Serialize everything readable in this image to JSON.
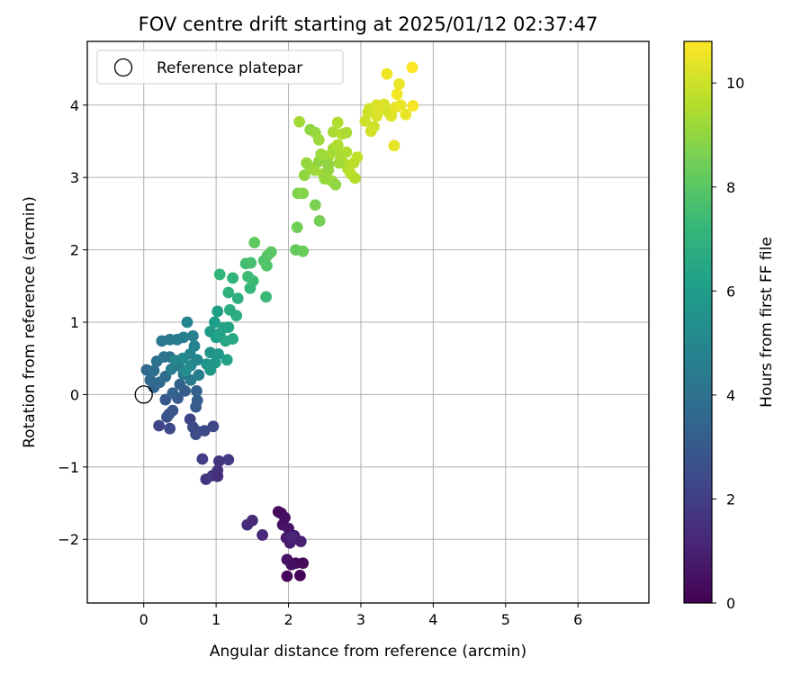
{
  "chart_data": {
    "type": "scatter",
    "title": "FOV centre drift starting at 2025/01/12 02:37:47",
    "xlabel": "Angular distance from reference (arcmin)",
    "ylabel": "Rotation from reference (arcmin)",
    "xlim": [
      -0.78,
      6.98
    ],
    "ylim": [
      -2.88,
      4.88
    ],
    "xticks": [
      0,
      1,
      2,
      3,
      4,
      5,
      6
    ],
    "yticks": [
      -2,
      -1,
      0,
      1,
      2,
      3,
      4
    ],
    "xtick_labels": [
      "0",
      "1",
      "2",
      "3",
      "4",
      "5",
      "6"
    ],
    "ytick_labels": [
      "−2",
      "−1",
      "0",
      "1",
      "2",
      "3",
      "4"
    ],
    "grid": true,
    "legend": {
      "position": "top-left",
      "entries": [
        "Reference platepar"
      ]
    },
    "colorbar": {
      "label": "Hours from first FF file",
      "range": [
        0,
        10.8
      ],
      "ticks": [
        0,
        2,
        4,
        6,
        8,
        10
      ],
      "tick_labels": [
        "0",
        "2",
        "4",
        "6",
        "8",
        "10"
      ],
      "colormap": "viridis"
    },
    "reference_point": {
      "x": 0,
      "y": 0
    },
    "points": [
      {
        "x": 1.86,
        "y": -1.62,
        "h": 0.2
      },
      {
        "x": 1.9,
        "y": -1.64,
        "h": 0.3
      },
      {
        "x": 1.95,
        "y": -1.7,
        "h": 0.4
      },
      {
        "x": 1.92,
        "y": -1.8,
        "h": 0.5
      },
      {
        "x": 2.0,
        "y": -1.85,
        "h": 0.6
      },
      {
        "x": 2.08,
        "y": -1.95,
        "h": 0.7
      },
      {
        "x": 1.97,
        "y": -1.98,
        "h": 0.8
      },
      {
        "x": 2.02,
        "y": -2.05,
        "h": 0.9
      },
      {
        "x": 2.17,
        "y": -2.03,
        "h": 1.0
      },
      {
        "x": 1.98,
        "y": -2.28,
        "h": 0.6
      },
      {
        "x": 2.04,
        "y": -2.35,
        "h": 0.5
      },
      {
        "x": 2.1,
        "y": -2.33,
        "h": 0.4
      },
      {
        "x": 2.2,
        "y": -2.33,
        "h": 0.3
      },
      {
        "x": 1.98,
        "y": -2.51,
        "h": 0.2
      },
      {
        "x": 2.16,
        "y": -2.5,
        "h": 0.1
      },
      {
        "x": 2.05,
        "y": -1.97,
        "h": 1.1
      },
      {
        "x": 1.43,
        "y": -1.8,
        "h": 1.4
      },
      {
        "x": 1.5,
        "y": -1.74,
        "h": 1.3
      },
      {
        "x": 1.64,
        "y": -1.94,
        "h": 1.2
      },
      {
        "x": 0.86,
        "y": -1.17,
        "h": 1.7
      },
      {
        "x": 0.95,
        "y": -1.12,
        "h": 1.8
      },
      {
        "x": 1.02,
        "y": -1.05,
        "h": 1.6
      },
      {
        "x": 1.02,
        "y": -1.13,
        "h": 1.5
      },
      {
        "x": 1.04,
        "y": -0.92,
        "h": 1.7
      },
      {
        "x": 1.17,
        "y": -0.9,
        "h": 1.9
      },
      {
        "x": 0.81,
        "y": -0.89,
        "h": 2.0
      },
      {
        "x": 0.21,
        "y": -0.43,
        "h": 2.3
      },
      {
        "x": 0.36,
        "y": -0.47,
        "h": 2.4
      },
      {
        "x": 0.64,
        "y": -0.34,
        "h": 2.2
      },
      {
        "x": 0.68,
        "y": -0.45,
        "h": 2.5
      },
      {
        "x": 0.74,
        "y": -0.51,
        "h": 2.6
      },
      {
        "x": 0.72,
        "y": -0.55,
        "h": 2.5
      },
      {
        "x": 0.84,
        "y": -0.5,
        "h": 2.4
      },
      {
        "x": 0.96,
        "y": -0.44,
        "h": 2.3
      },
      {
        "x": 0.32,
        "y": -0.31,
        "h": 2.7
      },
      {
        "x": 0.4,
        "y": -0.22,
        "h": 2.8
      },
      {
        "x": 0.35,
        "y": -0.27,
        "h": 2.9
      },
      {
        "x": 0.3,
        "y": -0.07,
        "h": 3.0
      },
      {
        "x": 0.47,
        "y": -0.05,
        "h": 3.1
      },
      {
        "x": 0.57,
        "y": 0.05,
        "h": 3.2
      },
      {
        "x": 0.5,
        "y": 0.14,
        "h": 3.3
      },
      {
        "x": 0.72,
        "y": -0.17,
        "h": 3.1
      },
      {
        "x": 0.74,
        "y": -0.08,
        "h": 3.2
      },
      {
        "x": 0.73,
        "y": 0.05,
        "h": 3.3
      },
      {
        "x": 0.4,
        "y": 0.02,
        "h": 3.4
      },
      {
        "x": 0.14,
        "y": 0.1,
        "h": 3.5
      },
      {
        "x": 0.09,
        "y": 0.2,
        "h": 3.6
      },
      {
        "x": 0.22,
        "y": 0.17,
        "h": 3.7
      },
      {
        "x": 0.3,
        "y": 0.25,
        "h": 3.8
      },
      {
        "x": 0.04,
        "y": 0.34,
        "h": 3.6
      },
      {
        "x": 0.14,
        "y": 0.33,
        "h": 3.9
      },
      {
        "x": 0.18,
        "y": 0.46,
        "h": 4.0
      },
      {
        "x": 0.28,
        "y": 0.52,
        "h": 4.1
      },
      {
        "x": 0.36,
        "y": 0.52,
        "h": 4.2
      },
      {
        "x": 0.48,
        "y": 0.4,
        "h": 4.3
      },
      {
        "x": 0.55,
        "y": 0.28,
        "h": 4.4
      },
      {
        "x": 0.65,
        "y": 0.2,
        "h": 4.5
      },
      {
        "x": 0.76,
        "y": 0.27,
        "h": 4.6
      },
      {
        "x": 0.25,
        "y": 0.74,
        "h": 4.3
      },
      {
        "x": 0.36,
        "y": 0.76,
        "h": 4.4
      },
      {
        "x": 0.46,
        "y": 0.76,
        "h": 4.5
      },
      {
        "x": 0.55,
        "y": 0.79,
        "h": 4.6
      },
      {
        "x": 0.68,
        "y": 0.81,
        "h": 4.7
      },
      {
        "x": 0.6,
        "y": 1.0,
        "h": 4.9
      },
      {
        "x": 0.7,
        "y": 0.67,
        "h": 4.8
      },
      {
        "x": 0.64,
        "y": 0.56,
        "h": 4.9
      },
      {
        "x": 0.74,
        "y": 0.48,
        "h": 5.0
      },
      {
        "x": 0.65,
        "y": 0.4,
        "h": 5.1
      },
      {
        "x": 0.54,
        "y": 0.5,
        "h": 5.2
      },
      {
        "x": 0.44,
        "y": 0.47,
        "h": 5.0
      },
      {
        "x": 0.38,
        "y": 0.35,
        "h": 4.6
      },
      {
        "x": 0.58,
        "y": 0.33,
        "h": 5.3
      },
      {
        "x": 0.92,
        "y": 0.58,
        "h": 5.5
      },
      {
        "x": 0.87,
        "y": 0.42,
        "h": 5.6
      },
      {
        "x": 0.92,
        "y": 0.34,
        "h": 5.7
      },
      {
        "x": 0.99,
        "y": 0.44,
        "h": 5.8
      },
      {
        "x": 0.92,
        "y": 0.87,
        "h": 5.9
      },
      {
        "x": 0.98,
        "y": 1.0,
        "h": 6.0
      },
      {
        "x": 1.02,
        "y": 1.15,
        "h": 6.1
      },
      {
        "x": 1.0,
        "y": 0.79,
        "h": 6.0
      },
      {
        "x": 1.05,
        "y": 0.84,
        "h": 6.2
      },
      {
        "x": 1.1,
        "y": 0.92,
        "h": 6.3
      },
      {
        "x": 1.17,
        "y": 0.93,
        "h": 6.2
      },
      {
        "x": 1.13,
        "y": 0.74,
        "h": 6.4
      },
      {
        "x": 1.15,
        "y": 0.48,
        "h": 6.1
      },
      {
        "x": 1.03,
        "y": 0.56,
        "h": 5.7
      },
      {
        "x": 1.23,
        "y": 0.77,
        "h": 6.5
      },
      {
        "x": 1.19,
        "y": 1.17,
        "h": 6.6
      },
      {
        "x": 1.28,
        "y": 1.09,
        "h": 6.7
      },
      {
        "x": 1.3,
        "y": 1.33,
        "h": 6.8
      },
      {
        "x": 1.17,
        "y": 1.41,
        "h": 6.9
      },
      {
        "x": 1.23,
        "y": 1.61,
        "h": 7.0
      },
      {
        "x": 1.05,
        "y": 1.66,
        "h": 7.1
      },
      {
        "x": 1.47,
        "y": 1.47,
        "h": 7.2
      },
      {
        "x": 1.51,
        "y": 1.57,
        "h": 7.3
      },
      {
        "x": 1.44,
        "y": 1.63,
        "h": 7.4
      },
      {
        "x": 1.41,
        "y": 1.81,
        "h": 7.5
      },
      {
        "x": 1.48,
        "y": 1.82,
        "h": 7.6
      },
      {
        "x": 1.69,
        "y": 1.35,
        "h": 7.3
      },
      {
        "x": 1.66,
        "y": 1.85,
        "h": 7.7
      },
      {
        "x": 1.7,
        "y": 1.78,
        "h": 7.8
      },
      {
        "x": 1.71,
        "y": 1.92,
        "h": 7.9
      },
      {
        "x": 1.76,
        "y": 1.97,
        "h": 8.0
      },
      {
        "x": 1.53,
        "y": 2.1,
        "h": 8.1
      },
      {
        "x": 2.1,
        "y": 2.0,
        "h": 8.2
      },
      {
        "x": 2.2,
        "y": 1.98,
        "h": 8.3
      },
      {
        "x": 2.12,
        "y": 2.31,
        "h": 8.4
      },
      {
        "x": 2.43,
        "y": 2.4,
        "h": 8.5
      },
      {
        "x": 2.37,
        "y": 2.62,
        "h": 8.6
      },
      {
        "x": 2.13,
        "y": 2.78,
        "h": 8.7
      },
      {
        "x": 2.2,
        "y": 2.78,
        "h": 8.8
      },
      {
        "x": 2.22,
        "y": 3.03,
        "h": 9.0
      },
      {
        "x": 2.3,
        "y": 3.14,
        "h": 9.1
      },
      {
        "x": 2.36,
        "y": 3.1,
        "h": 9.2
      },
      {
        "x": 2.42,
        "y": 3.22,
        "h": 9.0
      },
      {
        "x": 2.48,
        "y": 3.05,
        "h": 9.3
      },
      {
        "x": 2.55,
        "y": 3.1,
        "h": 9.1
      },
      {
        "x": 2.6,
        "y": 2.95,
        "h": 9.2
      },
      {
        "x": 2.65,
        "y": 2.9,
        "h": 9.0
      },
      {
        "x": 2.56,
        "y": 3.3,
        "h": 9.4
      },
      {
        "x": 2.62,
        "y": 3.4,
        "h": 9.3
      },
      {
        "x": 2.68,
        "y": 3.45,
        "h": 9.5
      },
      {
        "x": 2.72,
        "y": 3.3,
        "h": 9.4
      },
      {
        "x": 2.76,
        "y": 3.2,
        "h": 9.6
      },
      {
        "x": 2.82,
        "y": 3.12,
        "h": 9.5
      },
      {
        "x": 2.86,
        "y": 3.05,
        "h": 9.7
      },
      {
        "x": 2.92,
        "y": 2.99,
        "h": 9.6
      },
      {
        "x": 2.95,
        "y": 3.28,
        "h": 9.8
      },
      {
        "x": 2.9,
        "y": 3.2,
        "h": 9.7
      },
      {
        "x": 2.8,
        "y": 3.35,
        "h": 9.5
      },
      {
        "x": 2.7,
        "y": 3.2,
        "h": 9.3
      },
      {
        "x": 2.25,
        "y": 3.2,
        "h": 9.1
      },
      {
        "x": 2.3,
        "y": 3.66,
        "h": 9.0
      },
      {
        "x": 2.37,
        "y": 3.62,
        "h": 9.1
      },
      {
        "x": 2.42,
        "y": 3.52,
        "h": 9.2
      },
      {
        "x": 2.15,
        "y": 3.77,
        "h": 9.3
      },
      {
        "x": 2.62,
        "y": 3.63,
        "h": 9.4
      },
      {
        "x": 2.68,
        "y": 3.76,
        "h": 9.5
      },
      {
        "x": 2.74,
        "y": 3.6,
        "h": 9.6
      },
      {
        "x": 2.8,
        "y": 3.62,
        "h": 9.4
      },
      {
        "x": 2.45,
        "y": 3.32,
        "h": 9.2
      },
      {
        "x": 2.55,
        "y": 3.18,
        "h": 9.0
      },
      {
        "x": 2.5,
        "y": 2.98,
        "h": 9.1
      },
      {
        "x": 3.06,
        "y": 3.78,
        "h": 10.0
      },
      {
        "x": 3.12,
        "y": 3.95,
        "h": 10.1
      },
      {
        "x": 3.18,
        "y": 3.7,
        "h": 10.0
      },
      {
        "x": 3.22,
        "y": 4.0,
        "h": 10.2
      },
      {
        "x": 3.28,
        "y": 3.95,
        "h": 10.3
      },
      {
        "x": 3.32,
        "y": 4.01,
        "h": 10.2
      },
      {
        "x": 3.38,
        "y": 3.9,
        "h": 10.1
      },
      {
        "x": 3.42,
        "y": 3.85,
        "h": 10.3
      },
      {
        "x": 3.48,
        "y": 3.97,
        "h": 10.4
      },
      {
        "x": 3.55,
        "y": 4.0,
        "h": 10.5
      },
      {
        "x": 3.5,
        "y": 4.15,
        "h": 10.6
      },
      {
        "x": 3.53,
        "y": 4.29,
        "h": 10.5
      },
      {
        "x": 3.36,
        "y": 4.43,
        "h": 10.6
      },
      {
        "x": 3.71,
        "y": 4.52,
        "h": 10.8
      },
      {
        "x": 3.72,
        "y": 3.99,
        "h": 10.7
      },
      {
        "x": 3.62,
        "y": 3.87,
        "h": 10.5
      },
      {
        "x": 3.46,
        "y": 3.44,
        "h": 10.4
      },
      {
        "x": 3.14,
        "y": 3.64,
        "h": 10.1
      },
      {
        "x": 3.22,
        "y": 3.85,
        "h": 10.2
      },
      {
        "x": 3.1,
        "y": 3.9,
        "h": 10.0
      }
    ]
  }
}
